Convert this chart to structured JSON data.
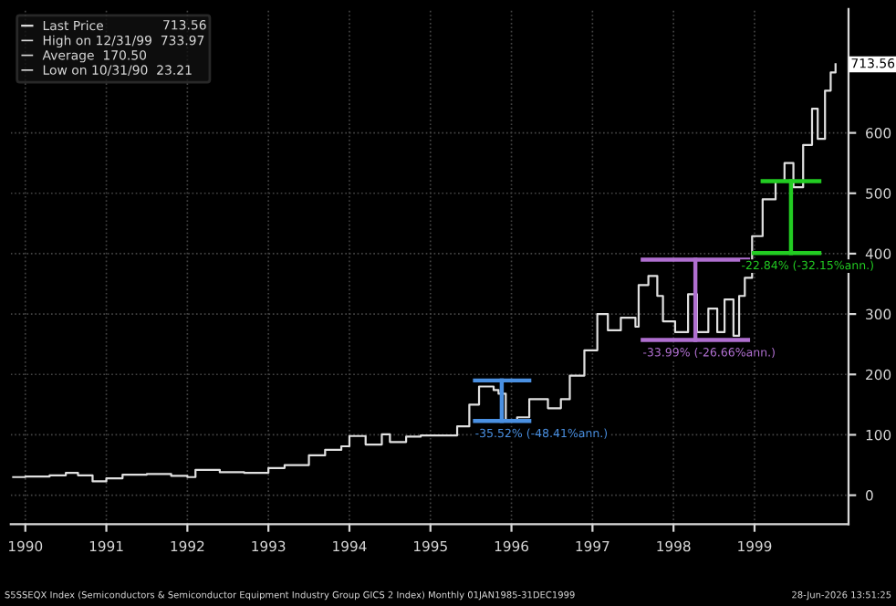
{
  "chart_data": {
    "type": "step",
    "legend": "top left",
    "grid": true,
    "xlim": [
      1989.82,
      2000.16
    ],
    "ylim": [
      -48,
      805
    ],
    "xticks": [
      {
        "value": 1990,
        "label": "1990"
      },
      {
        "value": 1991,
        "label": "1991"
      },
      {
        "value": 1992,
        "label": "1992"
      },
      {
        "value": 1993,
        "label": "1993"
      },
      {
        "value": 1994,
        "label": "1994"
      },
      {
        "value": 1995,
        "label": "1995"
      },
      {
        "value": 1996,
        "label": "1996"
      },
      {
        "value": 1997,
        "label": "1997"
      },
      {
        "value": 1998,
        "label": "1998"
      },
      {
        "value": 1999,
        "label": "1999"
      }
    ],
    "yticks": [
      0,
      100,
      200,
      300,
      400,
      500,
      600
    ],
    "series": [
      {
        "name": "Last Price",
        "color": "#e0e0e0",
        "x": [
          1989.85,
          1990.0,
          1990.3,
          1990.5,
          1990.65,
          1990.83,
          1991.0,
          1991.2,
          1991.5,
          1991.8,
          1992.0,
          1992.1,
          1992.4,
          1992.7,
          1993.0,
          1993.2,
          1993.5,
          1993.7,
          1993.9,
          1994.0,
          1994.2,
          1994.4,
          1994.5,
          1994.7,
          1994.88,
          1995.33,
          1995.48,
          1995.6,
          1995.78,
          1995.84,
          1995.93,
          1996.07,
          1996.22,
          1996.45,
          1996.61,
          1996.72,
          1996.9,
          1997.06,
          1997.19,
          1997.35,
          1997.53,
          1997.57,
          1997.69,
          1997.8,
          1997.87,
          1998.02,
          1998.18,
          1998.29,
          1998.43,
          1998.54,
          1998.63,
          1998.74,
          1998.81,
          1998.88,
          1998.97,
          1999.1,
          1999.26,
          1999.37,
          1999.48,
          1999.6,
          1999.71,
          1999.78,
          1999.87,
          1999.94,
          2000.0
        ],
        "values": [
          30,
          31,
          33,
          37,
          33,
          23,
          28,
          34,
          35,
          32,
          30,
          42,
          38,
          37,
          45,
          50,
          66,
          75,
          81,
          98,
          84,
          101,
          88,
          97,
          99,
          114,
          150,
          180,
          174,
          168,
          123,
          129,
          159,
          144,
          159,
          198,
          240,
          300,
          273,
          294,
          279,
          348,
          363,
          330,
          288,
          270,
          333,
          270,
          309,
          270,
          324,
          264,
          330,
          360,
          429,
          490,
          520,
          550,
          510,
          580,
          640,
          590,
          670,
          700,
          713.56
        ]
      },
      {
        "type": "line",
        "color": "#4a90e2",
        "x": [
          1995.55,
          1996.22
        ],
        "values": [
          190,
          190
        ]
      },
      {
        "type": "line",
        "color": "#4a90e2",
        "x": [
          1995.55,
          1996.22
        ],
        "values": [
          123,
          123
        ]
      },
      {
        "type": "line",
        "color": "#4a90e2",
        "x": [
          1995.88,
          1995.88
        ],
        "values": [
          190,
          123
        ]
      },
      {
        "type": "line",
        "color": "#b06fd0",
        "x": [
          1997.62,
          1998.92
        ],
        "values": [
          390,
          390
        ]
      },
      {
        "type": "line",
        "color": "#b06fd0",
        "x": [
          1997.62,
          1998.92
        ],
        "values": [
          257,
          257
        ]
      },
      {
        "type": "line",
        "color": "#b06fd0",
        "x": [
          1998.27,
          1998.27
        ],
        "values": [
          390,
          257
        ]
      },
      {
        "type": "line",
        "color": "#22cc22",
        "x": [
          1999.1,
          1999.8
        ],
        "values": [
          520,
          520
        ]
      },
      {
        "type": "line",
        "color": "#22cc22",
        "x": [
          1998.99,
          1999.8
        ],
        "values": [
          401,
          401
        ]
      },
      {
        "type": "line",
        "color": "#22cc22",
        "x": [
          1999.45,
          1999.45
        ],
        "values": [
          520,
          401
        ]
      }
    ],
    "annotations": [
      "713.56",
      "High on 12/31/99  733.97",
      "Average  170.50",
      "Low on 10/31/90  23.21",
      {
        "text": "-35.52% (-48.41%ann.)",
        "x": 1995.55,
        "y": 123
      },
      {
        "text": "-33.99% (-26.66%ann.)",
        "x": 1997.62,
        "y": 257
      },
      {
        "text": "-22.84% (-32.15%ann.)",
        "x": 1998.99,
        "y": 401
      },
      {
        "text": "713.56",
        "x": 2000.0,
        "y": 713.56
      },
      "S5SSEQX Index (Semiconductors & Semiconductor Equipment Industry Group GICS 2 Index) Monthly 01JAN1985-31DEC1999",
      "28-Jun-2026 13:51:25"
    ]
  }
}
